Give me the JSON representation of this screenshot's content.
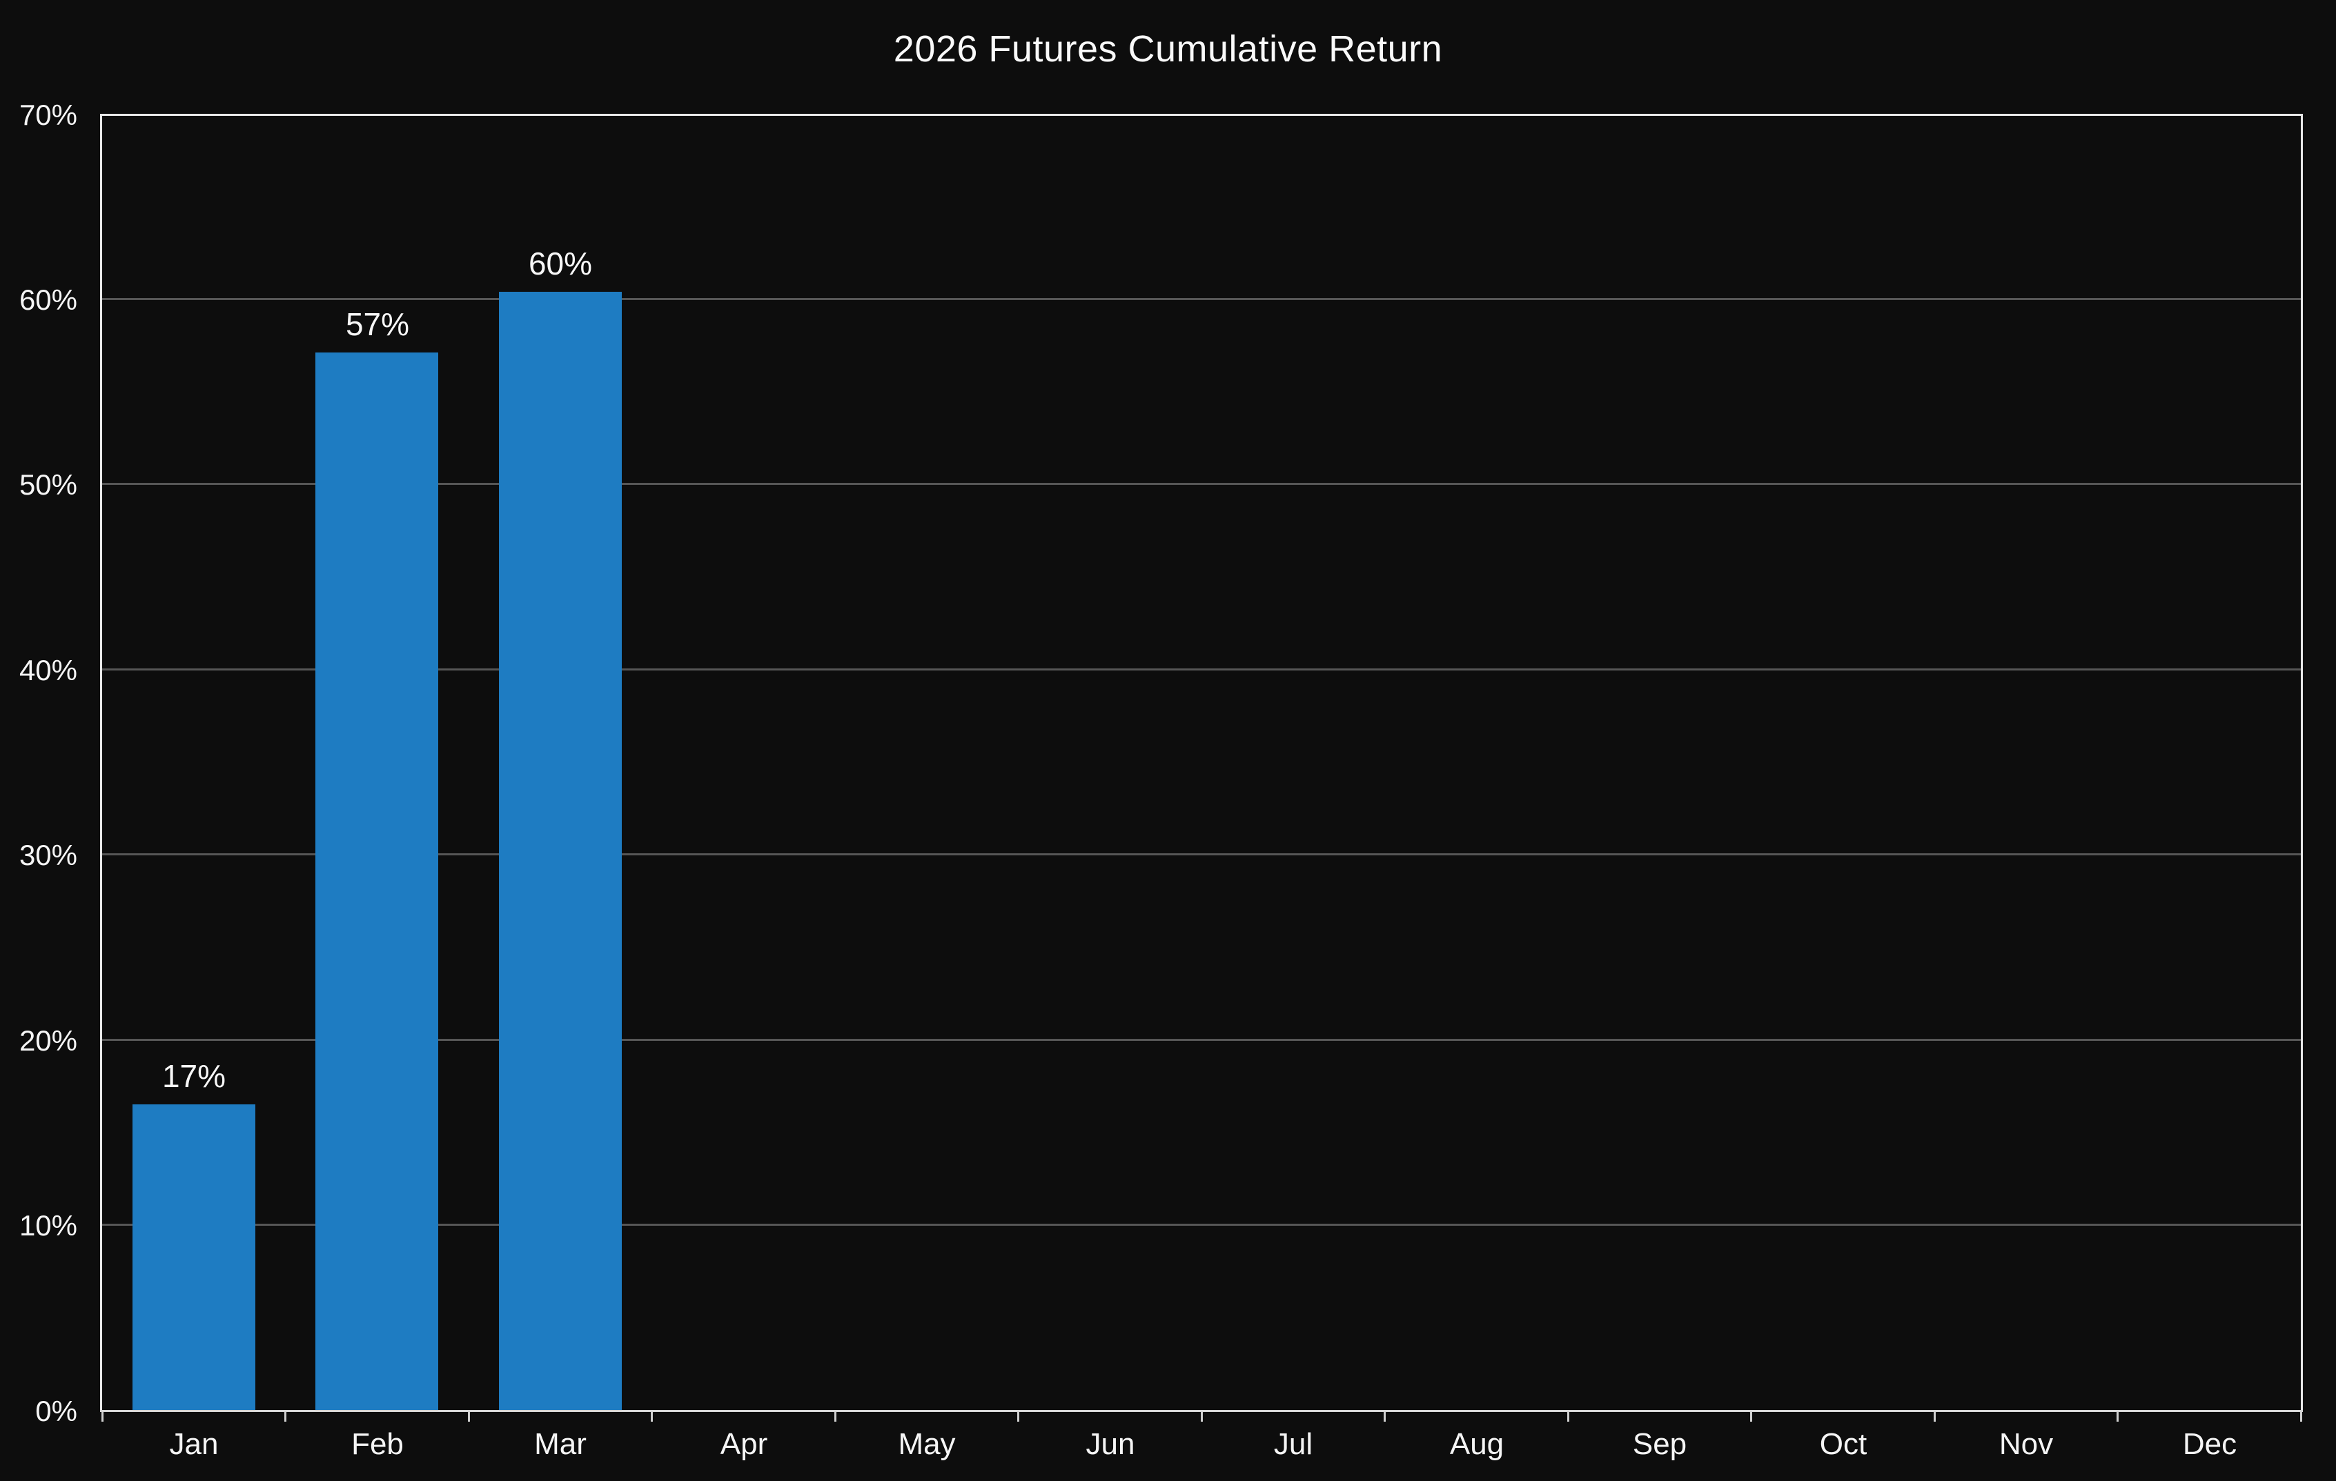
{
  "chart_data": {
    "type": "bar",
    "title": "2026 Futures Cumulative Return",
    "categories": [
      "Jan",
      "Feb",
      "Mar",
      "Apr",
      "May",
      "Jun",
      "Jul",
      "Aug",
      "Sep",
      "Oct",
      "Nov",
      "Dec"
    ],
    "values": [
      16.5,
      57.1,
      60.4,
      null,
      null,
      null,
      null,
      null,
      null,
      null,
      null,
      null
    ],
    "bar_labels": [
      "17%",
      "57%",
      "60%",
      null,
      null,
      null,
      null,
      null,
      null,
      null,
      null,
      null
    ],
    "xlabel": "",
    "ylabel": "",
    "ylim": [
      0,
      70
    ],
    "ytick_step": 10,
    "ytick_labels": [
      "0%",
      "10%",
      "20%",
      "30%",
      "40%",
      "50%",
      "60%",
      "70%"
    ],
    "grid": "horizontal",
    "legend": "none",
    "colors": {
      "background": "#0d0d0d",
      "bar": "#1e7cc2",
      "gridline": "#565656",
      "axis_line": "#e8e8e8",
      "tick_mark": "#cfcfcf",
      "text": "#f5f5f5"
    }
  }
}
